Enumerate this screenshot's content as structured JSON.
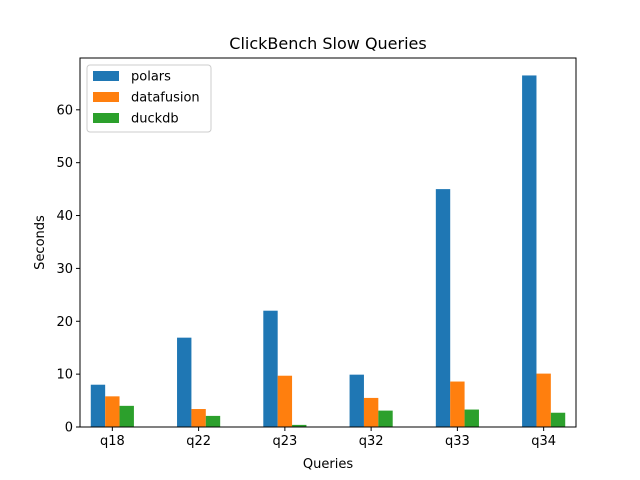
{
  "chart_data": {
    "type": "bar",
    "title": "ClickBench Slow Queries",
    "xlabel": "Queries",
    "ylabel": "Seconds",
    "categories": [
      "q18",
      "q22",
      "q23",
      "q32",
      "q33",
      "q34"
    ],
    "series": [
      {
        "name": "polars",
        "color": "#1f77b4",
        "values": [
          8.0,
          16.9,
          22.0,
          9.9,
          45.0,
          66.5
        ]
      },
      {
        "name": "datafusion",
        "color": "#ff7f0e",
        "values": [
          5.8,
          3.4,
          9.7,
          5.5,
          8.6,
          10.1
        ]
      },
      {
        "name": "duckdb",
        "color": "#2ca02c",
        "values": [
          4.0,
          2.1,
          0.4,
          3.1,
          3.3,
          2.7
        ]
      }
    ],
    "yticks": [
      0,
      10,
      20,
      30,
      40,
      50,
      60
    ],
    "ylim": [
      0,
      69.8
    ],
    "grid": false,
    "legend_position": "top-left"
  }
}
